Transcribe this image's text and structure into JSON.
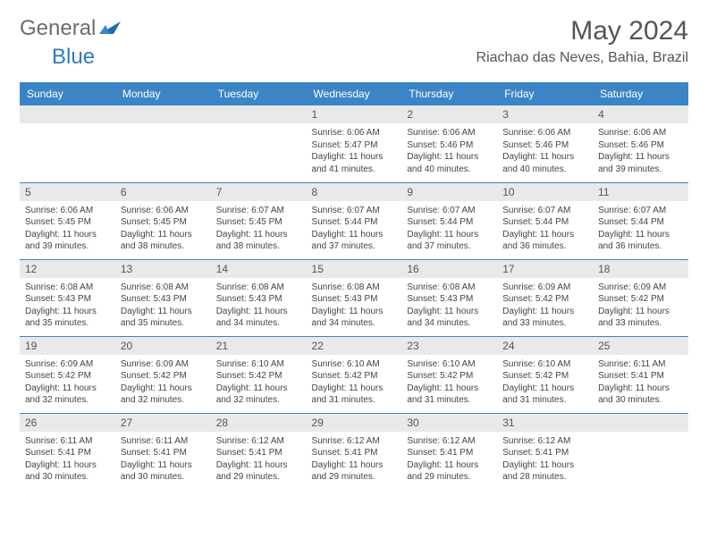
{
  "brand": {
    "part1": "General",
    "part2": "Blue"
  },
  "title": "May 2024",
  "location": "Riachao das Neves, Bahia, Brazil",
  "colors": {
    "header_bg": "#3b85c6",
    "header_fg": "#ffffff",
    "row_divider": "#3b85c6",
    "daynum_bg": "#e9e9e9",
    "brand_gray": "#6c6c6c",
    "brand_blue": "#2f7abf"
  },
  "weekdays": [
    "Sunday",
    "Monday",
    "Tuesday",
    "Wednesday",
    "Thursday",
    "Friday",
    "Saturday"
  ],
  "weeks": [
    [
      null,
      null,
      null,
      {
        "d": "1",
        "sr": "6:06 AM",
        "ss": "5:47 PM",
        "dl": "11 hours and 41 minutes."
      },
      {
        "d": "2",
        "sr": "6:06 AM",
        "ss": "5:46 PM",
        "dl": "11 hours and 40 minutes."
      },
      {
        "d": "3",
        "sr": "6:06 AM",
        "ss": "5:46 PM",
        "dl": "11 hours and 40 minutes."
      },
      {
        "d": "4",
        "sr": "6:06 AM",
        "ss": "5:46 PM",
        "dl": "11 hours and 39 minutes."
      }
    ],
    [
      {
        "d": "5",
        "sr": "6:06 AM",
        "ss": "5:45 PM",
        "dl": "11 hours and 39 minutes."
      },
      {
        "d": "6",
        "sr": "6:06 AM",
        "ss": "5:45 PM",
        "dl": "11 hours and 38 minutes."
      },
      {
        "d": "7",
        "sr": "6:07 AM",
        "ss": "5:45 PM",
        "dl": "11 hours and 38 minutes."
      },
      {
        "d": "8",
        "sr": "6:07 AM",
        "ss": "5:44 PM",
        "dl": "11 hours and 37 minutes."
      },
      {
        "d": "9",
        "sr": "6:07 AM",
        "ss": "5:44 PM",
        "dl": "11 hours and 37 minutes."
      },
      {
        "d": "10",
        "sr": "6:07 AM",
        "ss": "5:44 PM",
        "dl": "11 hours and 36 minutes."
      },
      {
        "d": "11",
        "sr": "6:07 AM",
        "ss": "5:44 PM",
        "dl": "11 hours and 36 minutes."
      }
    ],
    [
      {
        "d": "12",
        "sr": "6:08 AM",
        "ss": "5:43 PM",
        "dl": "11 hours and 35 minutes."
      },
      {
        "d": "13",
        "sr": "6:08 AM",
        "ss": "5:43 PM",
        "dl": "11 hours and 35 minutes."
      },
      {
        "d": "14",
        "sr": "6:08 AM",
        "ss": "5:43 PM",
        "dl": "11 hours and 34 minutes."
      },
      {
        "d": "15",
        "sr": "6:08 AM",
        "ss": "5:43 PM",
        "dl": "11 hours and 34 minutes."
      },
      {
        "d": "16",
        "sr": "6:08 AM",
        "ss": "5:43 PM",
        "dl": "11 hours and 34 minutes."
      },
      {
        "d": "17",
        "sr": "6:09 AM",
        "ss": "5:42 PM",
        "dl": "11 hours and 33 minutes."
      },
      {
        "d": "18",
        "sr": "6:09 AM",
        "ss": "5:42 PM",
        "dl": "11 hours and 33 minutes."
      }
    ],
    [
      {
        "d": "19",
        "sr": "6:09 AM",
        "ss": "5:42 PM",
        "dl": "11 hours and 32 minutes."
      },
      {
        "d": "20",
        "sr": "6:09 AM",
        "ss": "5:42 PM",
        "dl": "11 hours and 32 minutes."
      },
      {
        "d": "21",
        "sr": "6:10 AM",
        "ss": "5:42 PM",
        "dl": "11 hours and 32 minutes."
      },
      {
        "d": "22",
        "sr": "6:10 AM",
        "ss": "5:42 PM",
        "dl": "11 hours and 31 minutes."
      },
      {
        "d": "23",
        "sr": "6:10 AM",
        "ss": "5:42 PM",
        "dl": "11 hours and 31 minutes."
      },
      {
        "d": "24",
        "sr": "6:10 AM",
        "ss": "5:42 PM",
        "dl": "11 hours and 31 minutes."
      },
      {
        "d": "25",
        "sr": "6:11 AM",
        "ss": "5:41 PM",
        "dl": "11 hours and 30 minutes."
      }
    ],
    [
      {
        "d": "26",
        "sr": "6:11 AM",
        "ss": "5:41 PM",
        "dl": "11 hours and 30 minutes."
      },
      {
        "d": "27",
        "sr": "6:11 AM",
        "ss": "5:41 PM",
        "dl": "11 hours and 30 minutes."
      },
      {
        "d": "28",
        "sr": "6:12 AM",
        "ss": "5:41 PM",
        "dl": "11 hours and 29 minutes."
      },
      {
        "d": "29",
        "sr": "6:12 AM",
        "ss": "5:41 PM",
        "dl": "11 hours and 29 minutes."
      },
      {
        "d": "30",
        "sr": "6:12 AM",
        "ss": "5:41 PM",
        "dl": "11 hours and 29 minutes."
      },
      {
        "d": "31",
        "sr": "6:12 AM",
        "ss": "5:41 PM",
        "dl": "11 hours and 28 minutes."
      },
      null
    ]
  ],
  "labels": {
    "sunrise": "Sunrise:",
    "sunset": "Sunset:",
    "daylight": "Daylight:"
  }
}
